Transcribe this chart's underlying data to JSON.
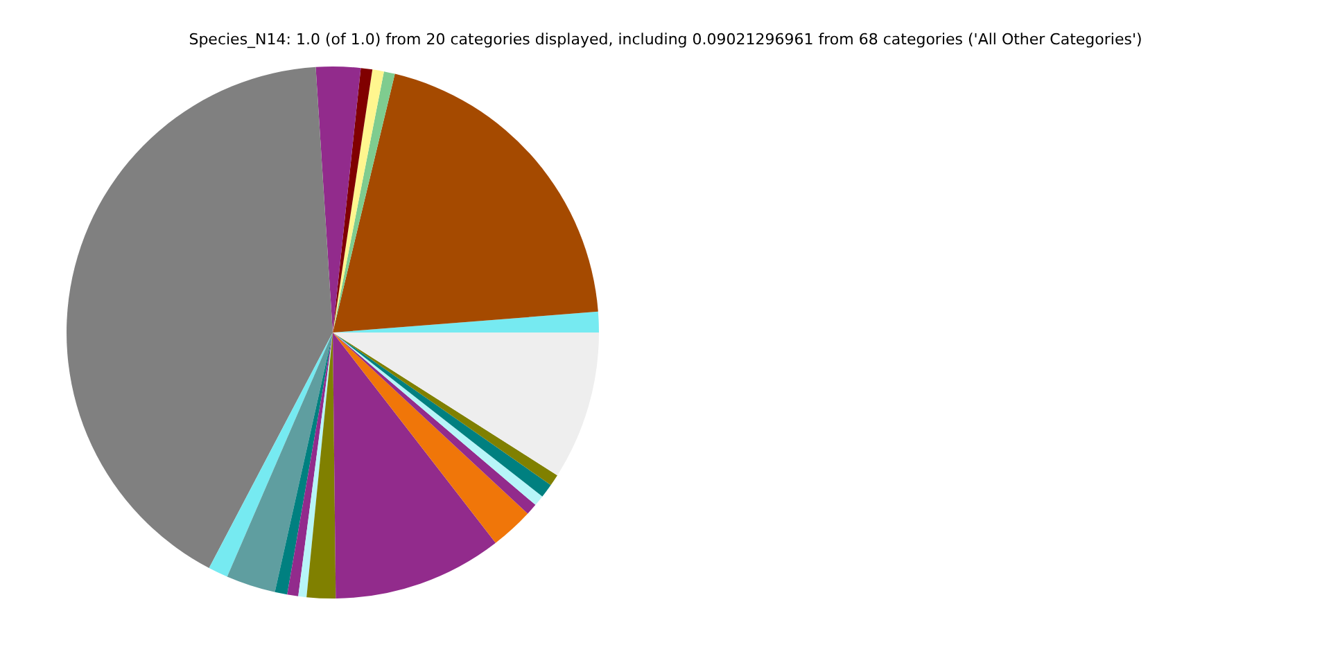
{
  "chart_data": {
    "type": "pie",
    "title": "Species_N14: 1.0 (of 1.0) from 20 categories displayed, including 0.09021296961 from 68 categories ('All Other Categories')",
    "categories": [
      null,
      null,
      null,
      null,
      null,
      null,
      null,
      null,
      null,
      null,
      null,
      null,
      null,
      null,
      null,
      null,
      null,
      null,
      null,
      null
    ],
    "values": [
      1.25,
      20,
      0.67,
      0.7,
      0.7,
      2.7,
      41.29,
      1.2,
      3.0,
      0.75,
      0.67,
      0.5,
      1.75,
      10.3,
      2.6,
      0.7,
      0.65,
      0.85,
      0.7,
      9.02
    ],
    "colors": [
      "#76eaf1",
      "#a54a00",
      "#7fcc8f",
      "#fff68f",
      "#800000",
      "#922b8c",
      "#808080",
      "#76eaf1",
      "#5f9ea0",
      "#008080",
      "#922b8c",
      "#b7f5f8",
      "#808000",
      "#922b8c",
      "#f07609",
      "#922b8c",
      "#b7f5f8",
      "#008080",
      "#808000",
      "#eeeeee"
    ],
    "legend": false
  }
}
